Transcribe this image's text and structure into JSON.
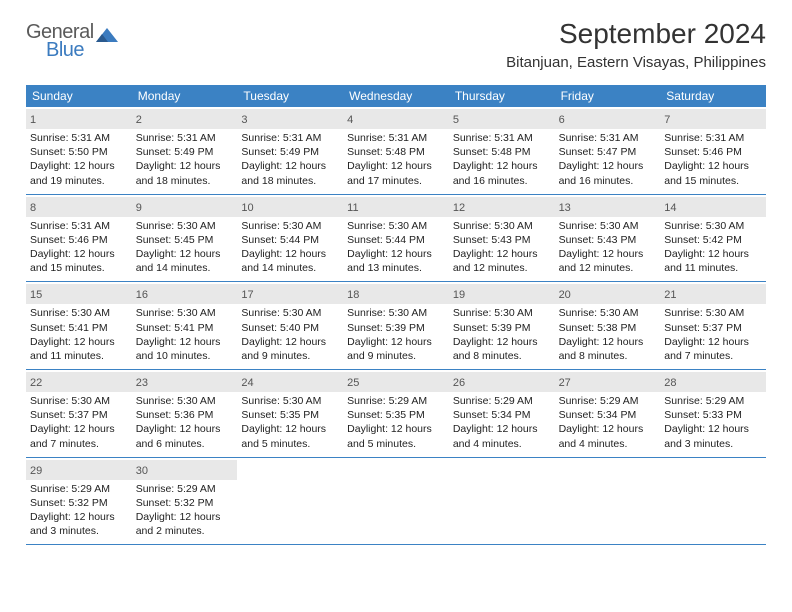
{
  "logo": {
    "line1": "General",
    "line2": "Blue"
  },
  "title": "September 2024",
  "location": "Bitanjuan, Eastern Visayas, Philippines",
  "colors": {
    "header_bg": "#3b82c4",
    "header_text": "#ffffff",
    "daynum_bg": "#e8e8e8",
    "border": "#3b82c4",
    "logo_gray": "#5a5a5a",
    "logo_blue": "#3b7bbf"
  },
  "day_names": [
    "Sunday",
    "Monday",
    "Tuesday",
    "Wednesday",
    "Thursday",
    "Friday",
    "Saturday"
  ],
  "weeks": [
    [
      {
        "n": "1",
        "sr": "Sunrise: 5:31 AM",
        "ss": "Sunset: 5:50 PM",
        "dl1": "Daylight: 12 hours",
        "dl2": "and 19 minutes."
      },
      {
        "n": "2",
        "sr": "Sunrise: 5:31 AM",
        "ss": "Sunset: 5:49 PM",
        "dl1": "Daylight: 12 hours",
        "dl2": "and 18 minutes."
      },
      {
        "n": "3",
        "sr": "Sunrise: 5:31 AM",
        "ss": "Sunset: 5:49 PM",
        "dl1": "Daylight: 12 hours",
        "dl2": "and 18 minutes."
      },
      {
        "n": "4",
        "sr": "Sunrise: 5:31 AM",
        "ss": "Sunset: 5:48 PM",
        "dl1": "Daylight: 12 hours",
        "dl2": "and 17 minutes."
      },
      {
        "n": "5",
        "sr": "Sunrise: 5:31 AM",
        "ss": "Sunset: 5:48 PM",
        "dl1": "Daylight: 12 hours",
        "dl2": "and 16 minutes."
      },
      {
        "n": "6",
        "sr": "Sunrise: 5:31 AM",
        "ss": "Sunset: 5:47 PM",
        "dl1": "Daylight: 12 hours",
        "dl2": "and 16 minutes."
      },
      {
        "n": "7",
        "sr": "Sunrise: 5:31 AM",
        "ss": "Sunset: 5:46 PM",
        "dl1": "Daylight: 12 hours",
        "dl2": "and 15 minutes."
      }
    ],
    [
      {
        "n": "8",
        "sr": "Sunrise: 5:31 AM",
        "ss": "Sunset: 5:46 PM",
        "dl1": "Daylight: 12 hours",
        "dl2": "and 15 minutes."
      },
      {
        "n": "9",
        "sr": "Sunrise: 5:30 AM",
        "ss": "Sunset: 5:45 PM",
        "dl1": "Daylight: 12 hours",
        "dl2": "and 14 minutes."
      },
      {
        "n": "10",
        "sr": "Sunrise: 5:30 AM",
        "ss": "Sunset: 5:44 PM",
        "dl1": "Daylight: 12 hours",
        "dl2": "and 14 minutes."
      },
      {
        "n": "11",
        "sr": "Sunrise: 5:30 AM",
        "ss": "Sunset: 5:44 PM",
        "dl1": "Daylight: 12 hours",
        "dl2": "and 13 minutes."
      },
      {
        "n": "12",
        "sr": "Sunrise: 5:30 AM",
        "ss": "Sunset: 5:43 PM",
        "dl1": "Daylight: 12 hours",
        "dl2": "and 12 minutes."
      },
      {
        "n": "13",
        "sr": "Sunrise: 5:30 AM",
        "ss": "Sunset: 5:43 PM",
        "dl1": "Daylight: 12 hours",
        "dl2": "and 12 minutes."
      },
      {
        "n": "14",
        "sr": "Sunrise: 5:30 AM",
        "ss": "Sunset: 5:42 PM",
        "dl1": "Daylight: 12 hours",
        "dl2": "and 11 minutes."
      }
    ],
    [
      {
        "n": "15",
        "sr": "Sunrise: 5:30 AM",
        "ss": "Sunset: 5:41 PM",
        "dl1": "Daylight: 12 hours",
        "dl2": "and 11 minutes."
      },
      {
        "n": "16",
        "sr": "Sunrise: 5:30 AM",
        "ss": "Sunset: 5:41 PM",
        "dl1": "Daylight: 12 hours",
        "dl2": "and 10 minutes."
      },
      {
        "n": "17",
        "sr": "Sunrise: 5:30 AM",
        "ss": "Sunset: 5:40 PM",
        "dl1": "Daylight: 12 hours",
        "dl2": "and 9 minutes."
      },
      {
        "n": "18",
        "sr": "Sunrise: 5:30 AM",
        "ss": "Sunset: 5:39 PM",
        "dl1": "Daylight: 12 hours",
        "dl2": "and 9 minutes."
      },
      {
        "n": "19",
        "sr": "Sunrise: 5:30 AM",
        "ss": "Sunset: 5:39 PM",
        "dl1": "Daylight: 12 hours",
        "dl2": "and 8 minutes."
      },
      {
        "n": "20",
        "sr": "Sunrise: 5:30 AM",
        "ss": "Sunset: 5:38 PM",
        "dl1": "Daylight: 12 hours",
        "dl2": "and 8 minutes."
      },
      {
        "n": "21",
        "sr": "Sunrise: 5:30 AM",
        "ss": "Sunset: 5:37 PM",
        "dl1": "Daylight: 12 hours",
        "dl2": "and 7 minutes."
      }
    ],
    [
      {
        "n": "22",
        "sr": "Sunrise: 5:30 AM",
        "ss": "Sunset: 5:37 PM",
        "dl1": "Daylight: 12 hours",
        "dl2": "and 7 minutes."
      },
      {
        "n": "23",
        "sr": "Sunrise: 5:30 AM",
        "ss": "Sunset: 5:36 PM",
        "dl1": "Daylight: 12 hours",
        "dl2": "and 6 minutes."
      },
      {
        "n": "24",
        "sr": "Sunrise: 5:30 AM",
        "ss": "Sunset: 5:35 PM",
        "dl1": "Daylight: 12 hours",
        "dl2": "and 5 minutes."
      },
      {
        "n": "25",
        "sr": "Sunrise: 5:29 AM",
        "ss": "Sunset: 5:35 PM",
        "dl1": "Daylight: 12 hours",
        "dl2": "and 5 minutes."
      },
      {
        "n": "26",
        "sr": "Sunrise: 5:29 AM",
        "ss": "Sunset: 5:34 PM",
        "dl1": "Daylight: 12 hours",
        "dl2": "and 4 minutes."
      },
      {
        "n": "27",
        "sr": "Sunrise: 5:29 AM",
        "ss": "Sunset: 5:34 PM",
        "dl1": "Daylight: 12 hours",
        "dl2": "and 4 minutes."
      },
      {
        "n": "28",
        "sr": "Sunrise: 5:29 AM",
        "ss": "Sunset: 5:33 PM",
        "dl1": "Daylight: 12 hours",
        "dl2": "and 3 minutes."
      }
    ],
    [
      {
        "n": "29",
        "sr": "Sunrise: 5:29 AM",
        "ss": "Sunset: 5:32 PM",
        "dl1": "Daylight: 12 hours",
        "dl2": "and 3 minutes."
      },
      {
        "n": "30",
        "sr": "Sunrise: 5:29 AM",
        "ss": "Sunset: 5:32 PM",
        "dl1": "Daylight: 12 hours",
        "dl2": "and 2 minutes."
      },
      {
        "empty": true
      },
      {
        "empty": true
      },
      {
        "empty": true
      },
      {
        "empty": true
      },
      {
        "empty": true
      }
    ]
  ]
}
